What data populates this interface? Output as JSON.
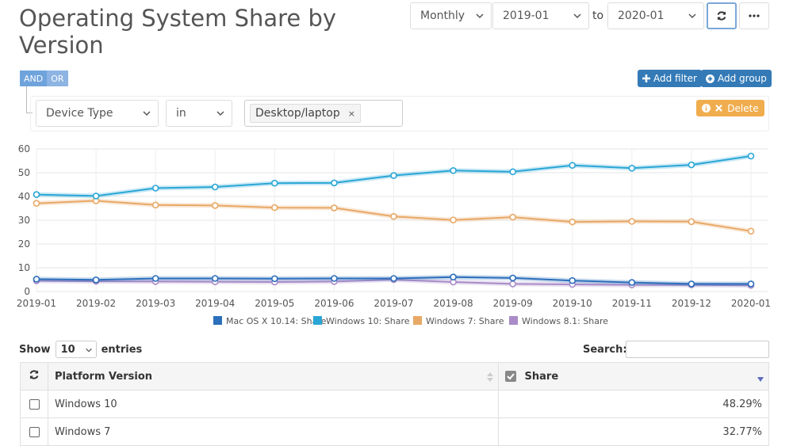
{
  "header": {
    "title": "Operating System Share by Version",
    "interval": "Monthly",
    "from": "2019-01",
    "to_label": "to",
    "to": "2020-01"
  },
  "filters": {
    "logic_and": "AND",
    "logic_or": "OR",
    "add_filter": "Add filter",
    "add_group": "Add group",
    "field": "Device Type",
    "operator": "in",
    "value_tag": "Desktop/laptop",
    "delete": "Delete"
  },
  "chart_data": {
    "type": "line",
    "x": [
      "2019-01",
      "2019-02",
      "2019-03",
      "2019-04",
      "2019-05",
      "2019-06",
      "2019-07",
      "2019-08",
      "2019-09",
      "2019-10",
      "2019-11",
      "2019-12",
      "2020-01"
    ],
    "ylim": [
      0,
      60
    ],
    "yticks": [
      0,
      10,
      20,
      30,
      40,
      50,
      60
    ],
    "grid": true,
    "legend_position": "bottom",
    "series": [
      {
        "name": "Mac OS X 10.14: Share",
        "color": "#2c6fbb",
        "values": [
          5.2,
          4.9,
          5.5,
          5.5,
          5.4,
          5.5,
          5.5,
          6.1,
          5.7,
          4.6,
          3.8,
          3.2,
          3.2
        ]
      },
      {
        "name": "Windows 10: Share",
        "color": "#2aa6d6",
        "values": [
          40.8,
          40.2,
          43.5,
          44.0,
          45.6,
          45.7,
          48.8,
          50.9,
          50.4,
          53.1,
          51.9,
          53.3,
          57.0
        ]
      },
      {
        "name": "Windows 7: Share",
        "color": "#e8a866",
        "values": [
          37.1,
          38.2,
          36.4,
          36.2,
          35.3,
          35.2,
          31.6,
          30.1,
          31.3,
          29.3,
          29.5,
          29.4,
          25.4
        ]
      },
      {
        "name": "Windows 8.1: Share",
        "color": "#a98cc8",
        "values": [
          4.5,
          4.3,
          4.2,
          4.1,
          4.0,
          4.2,
          5.0,
          4.0,
          3.2,
          3.0,
          2.8,
          2.8,
          2.6
        ]
      }
    ]
  },
  "table": {
    "show_label": "Show",
    "entries_value": "10",
    "entries_label": "entries",
    "search_label": "Search:",
    "columns": [
      "Platform Version",
      "Share"
    ],
    "rows": [
      {
        "platform": "Windows 10",
        "share": "48.29%"
      },
      {
        "platform": "Windows 7",
        "share": "32.77%"
      }
    ]
  }
}
